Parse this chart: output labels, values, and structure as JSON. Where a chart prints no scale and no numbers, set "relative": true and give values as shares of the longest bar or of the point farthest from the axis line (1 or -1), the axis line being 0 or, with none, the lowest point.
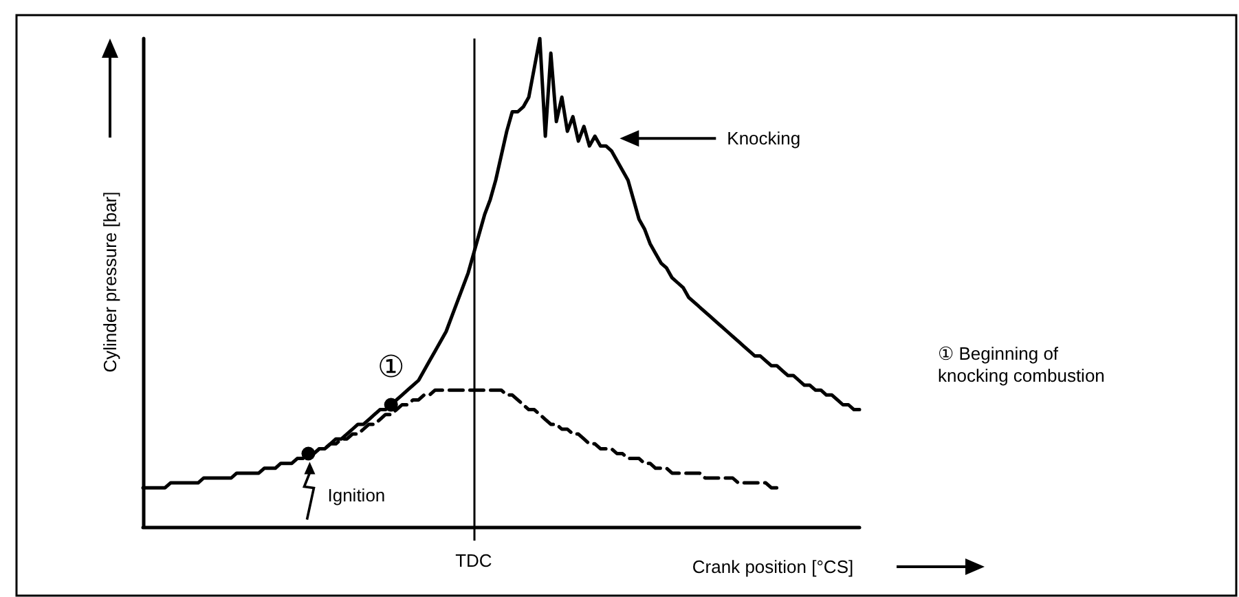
{
  "chart_data": {
    "type": "line",
    "relative": true,
    "xlabel": "Crank position [°CS]",
    "ylabel": "Cylinder pressure [bar]",
    "categories": [
      null,
      null,
      null,
      null,
      null,
      null,
      null,
      null,
      null,
      null,
      null,
      null,
      null,
      null,
      null,
      null,
      null,
      null,
      null,
      null,
      null,
      null,
      null,
      null,
      null,
      null,
      null,
      null,
      null,
      null,
      null,
      null,
      null,
      null,
      null,
      null,
      null,
      null,
      null,
      null,
      null,
      null,
      null,
      null,
      null,
      null,
      null,
      null,
      null,
      null,
      null,
      null,
      null,
      null,
      null,
      null,
      null,
      null,
      null,
      null,
      null,
      null,
      null,
      null,
      null,
      null,
      null,
      null,
      null,
      null,
      null,
      null,
      null,
      null,
      null,
      null,
      null,
      null,
      null,
      null,
      null,
      null,
      null,
      null,
      null,
      null,
      null,
      null,
      null,
      null,
      null,
      null,
      null,
      null,
      null,
      null,
      null,
      null,
      null,
      null,
      null,
      null,
      null,
      null,
      null,
      null,
      null,
      null,
      null,
      null,
      null,
      null,
      null,
      null,
      null,
      null,
      null,
      null,
      null,
      null,
      null,
      null,
      null,
      null,
      null,
      null,
      null,
      null,
      null,
      null,
      null
    ],
    "series": [
      {
        "color": "#000000",
        "line_style": "solid",
        "values": [
          0.08,
          0.08,
          0.08,
          0.08,
          0.08,
          0.09,
          0.09,
          0.09,
          0.09,
          0.09,
          0.09,
          0.1,
          0.1,
          0.1,
          0.1,
          0.1,
          0.1,
          0.11,
          0.11,
          0.11,
          0.11,
          0.11,
          0.12,
          0.12,
          0.12,
          0.13,
          0.13,
          0.13,
          0.14,
          0.14,
          0.15,
          0.15,
          0.16,
          0.16,
          0.17,
          0.18,
          0.18,
          0.19,
          0.2,
          0.21,
          0.21,
          0.22,
          0.23,
          0.24,
          0.24,
          0.25,
          0.26,
          0.27,
          0.28,
          0.29,
          0.3,
          0.32,
          0.34,
          0.36,
          0.38,
          0.4,
          0.43,
          0.46,
          0.49,
          0.52,
          0.56,
          0.6,
          0.64,
          0.67,
          0.71,
          0.76,
          0.81,
          0.85,
          0.85,
          0.86,
          0.88,
          0.94,
          1,
          0.8,
          0.97,
          0.83,
          0.88,
          0.81,
          0.84,
          0.79,
          0.82,
          0.78,
          0.8,
          0.78,
          0.78,
          0.77,
          0.75,
          0.73,
          0.71,
          0.67,
          0.63,
          0.61,
          0.58,
          0.56,
          0.54,
          0.53,
          0.51,
          0.5,
          0.49,
          0.47,
          0.46,
          0.45,
          0.44,
          0.43,
          0.42,
          0.41,
          0.4,
          0.39,
          0.38,
          0.37,
          0.36,
          0.35,
          0.35,
          0.34,
          0.33,
          0.33,
          0.32,
          0.31,
          0.31,
          0.3,
          0.29,
          0.29,
          0.28,
          0.28,
          0.27,
          0.27,
          0.26,
          0.25,
          0.25,
          0.24,
          0.24
        ]
      },
      {
        "color": "#000000",
        "line_style": "dashed",
        "values": [
          null,
          null,
          null,
          null,
          null,
          null,
          null,
          null,
          null,
          null,
          null,
          null,
          null,
          null,
          null,
          null,
          null,
          null,
          null,
          null,
          null,
          null,
          null,
          null,
          null,
          null,
          null,
          null,
          null,
          null,
          0.15,
          0.15,
          0.16,
          0.16,
          0.17,
          0.17,
          0.18,
          0.18,
          0.19,
          0.19,
          0.2,
          0.21,
          0.21,
          0.22,
          0.23,
          0.23,
          0.24,
          0.25,
          0.25,
          0.26,
          0.26,
          0.27,
          0.27,
          0.28,
          0.28,
          0.28,
          0.28,
          0.28,
          0.28,
          0.28,
          0.28,
          0.28,
          0.28,
          0.28,
          0.28,
          0.28,
          0.27,
          0.27,
          0.26,
          0.25,
          0.24,
          0.24,
          0.23,
          0.22,
          0.21,
          0.21,
          0.2,
          0.2,
          0.19,
          0.19,
          0.18,
          0.17,
          0.17,
          0.16,
          0.16,
          0.16,
          0.15,
          0.15,
          0.14,
          0.14,
          0.14,
          0.13,
          0.13,
          0.12,
          0.12,
          0.12,
          0.11,
          0.11,
          0.11,
          0.11,
          0.11,
          0.11,
          0.1,
          0.1,
          0.1,
          0.1,
          0.1,
          0.1,
          0.09,
          0.09,
          0.09,
          0.09,
          0.09,
          0.09,
          0.08,
          0.08,
          0.08,
          null,
          null,
          null,
          null,
          null,
          null,
          null,
          null,
          null,
          null,
          null,
          null,
          null,
          null
        ]
      }
    ],
    "ref_lines": [
      {
        "axis": "x",
        "label": "TDC",
        "color": "#000000"
      }
    ],
    "annotations": [
      "Knocking",
      "Ignition",
      "①",
      "① Beginning of\nknocking combustion"
    ]
  }
}
